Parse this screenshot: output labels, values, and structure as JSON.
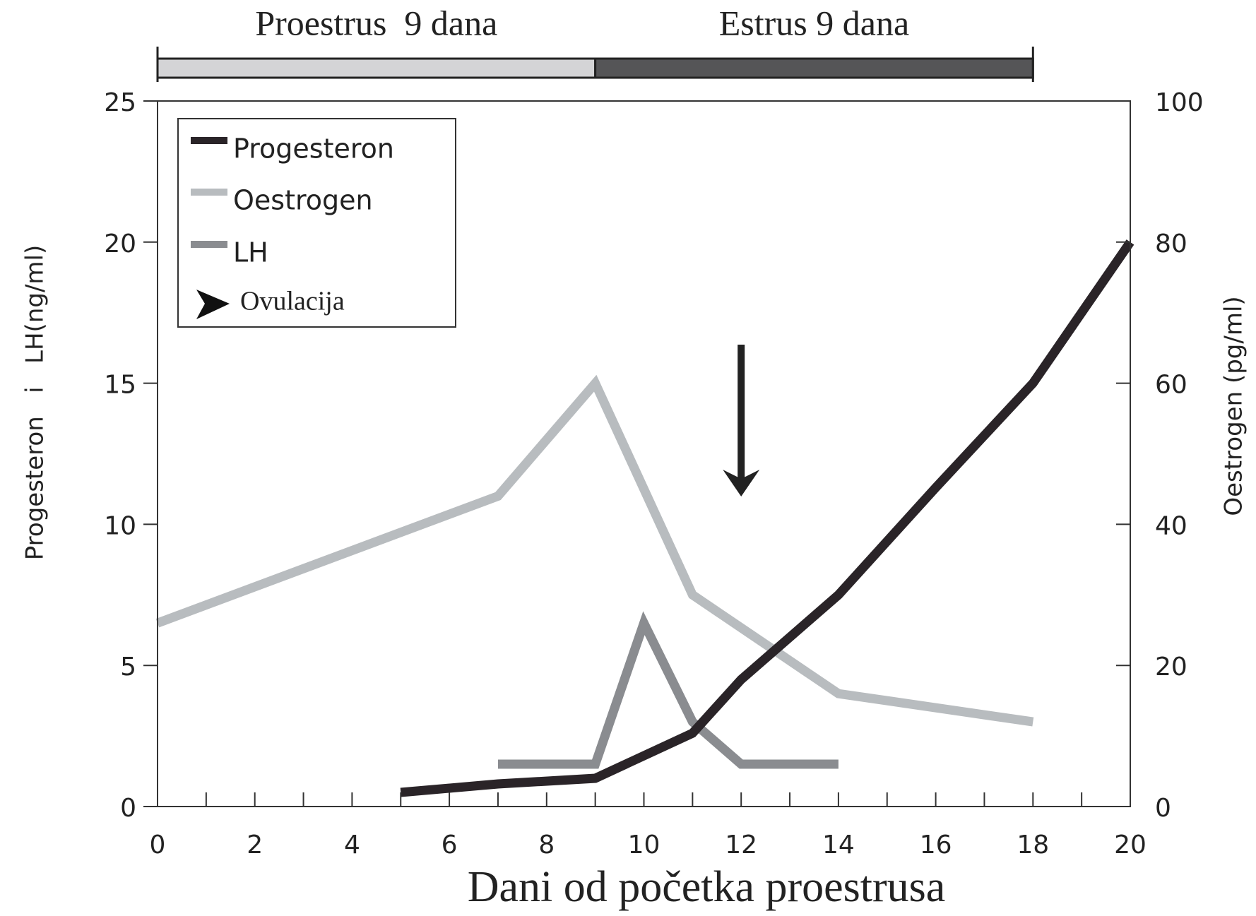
{
  "chart_data": {
    "type": "line",
    "x_label": "Dani od početka proestrusa",
    "y_label": "Progesteron   i   LH(ng/ml)",
    "y2_label": "Oestrogen (pg/ml)",
    "xlim": [
      0,
      20
    ],
    "xticks": [
      0,
      2,
      4,
      6,
      8,
      10,
      12,
      14,
      16,
      18,
      20
    ],
    "xminor_ticks": [
      1,
      3,
      5,
      7,
      9,
      11,
      13,
      15,
      17,
      19
    ],
    "ylim": [
      0,
      25
    ],
    "yticks": [
      0,
      5,
      10,
      15,
      20,
      25
    ],
    "y2lim": [
      0,
      100
    ],
    "y2ticks": [
      0,
      20,
      40,
      60,
      80,
      100
    ],
    "legend": "upper left",
    "phases": [
      {
        "label": "Proestrus  9 dana",
        "start": 0,
        "end": 9,
        "color": "#d4d4d6"
      },
      {
        "label": "Estrus 9 dana",
        "start": 9,
        "end": 18,
        "color": "#555557"
      }
    ],
    "annotations": [
      {
        "label": "Ovulacija",
        "x": 12
      }
    ],
    "series": [
      {
        "name": "Progesteron",
        "color": "#2a2428",
        "x": [
          5,
          7,
          9,
          11,
          12,
          14,
          16,
          18,
          20
        ],
        "values": [
          0.5,
          0.8,
          1,
          2.6,
          4.5,
          7.5,
          11.3,
          15,
          20
        ]
      },
      {
        "name": "Oestrogen",
        "color": "#b8bcbf",
        "axis": "y2",
        "x": [
          0,
          7,
          9,
          11,
          14,
          18
        ],
        "values": [
          26,
          44,
          60,
          30,
          16,
          12
        ]
      },
      {
        "name": "LH",
        "color": "#8a8c90",
        "x": [
          7,
          9,
          10,
          11,
          12,
          14
        ],
        "values": [
          1.5,
          1.5,
          6.5,
          3,
          1.5,
          1.5
        ]
      }
    ]
  }
}
